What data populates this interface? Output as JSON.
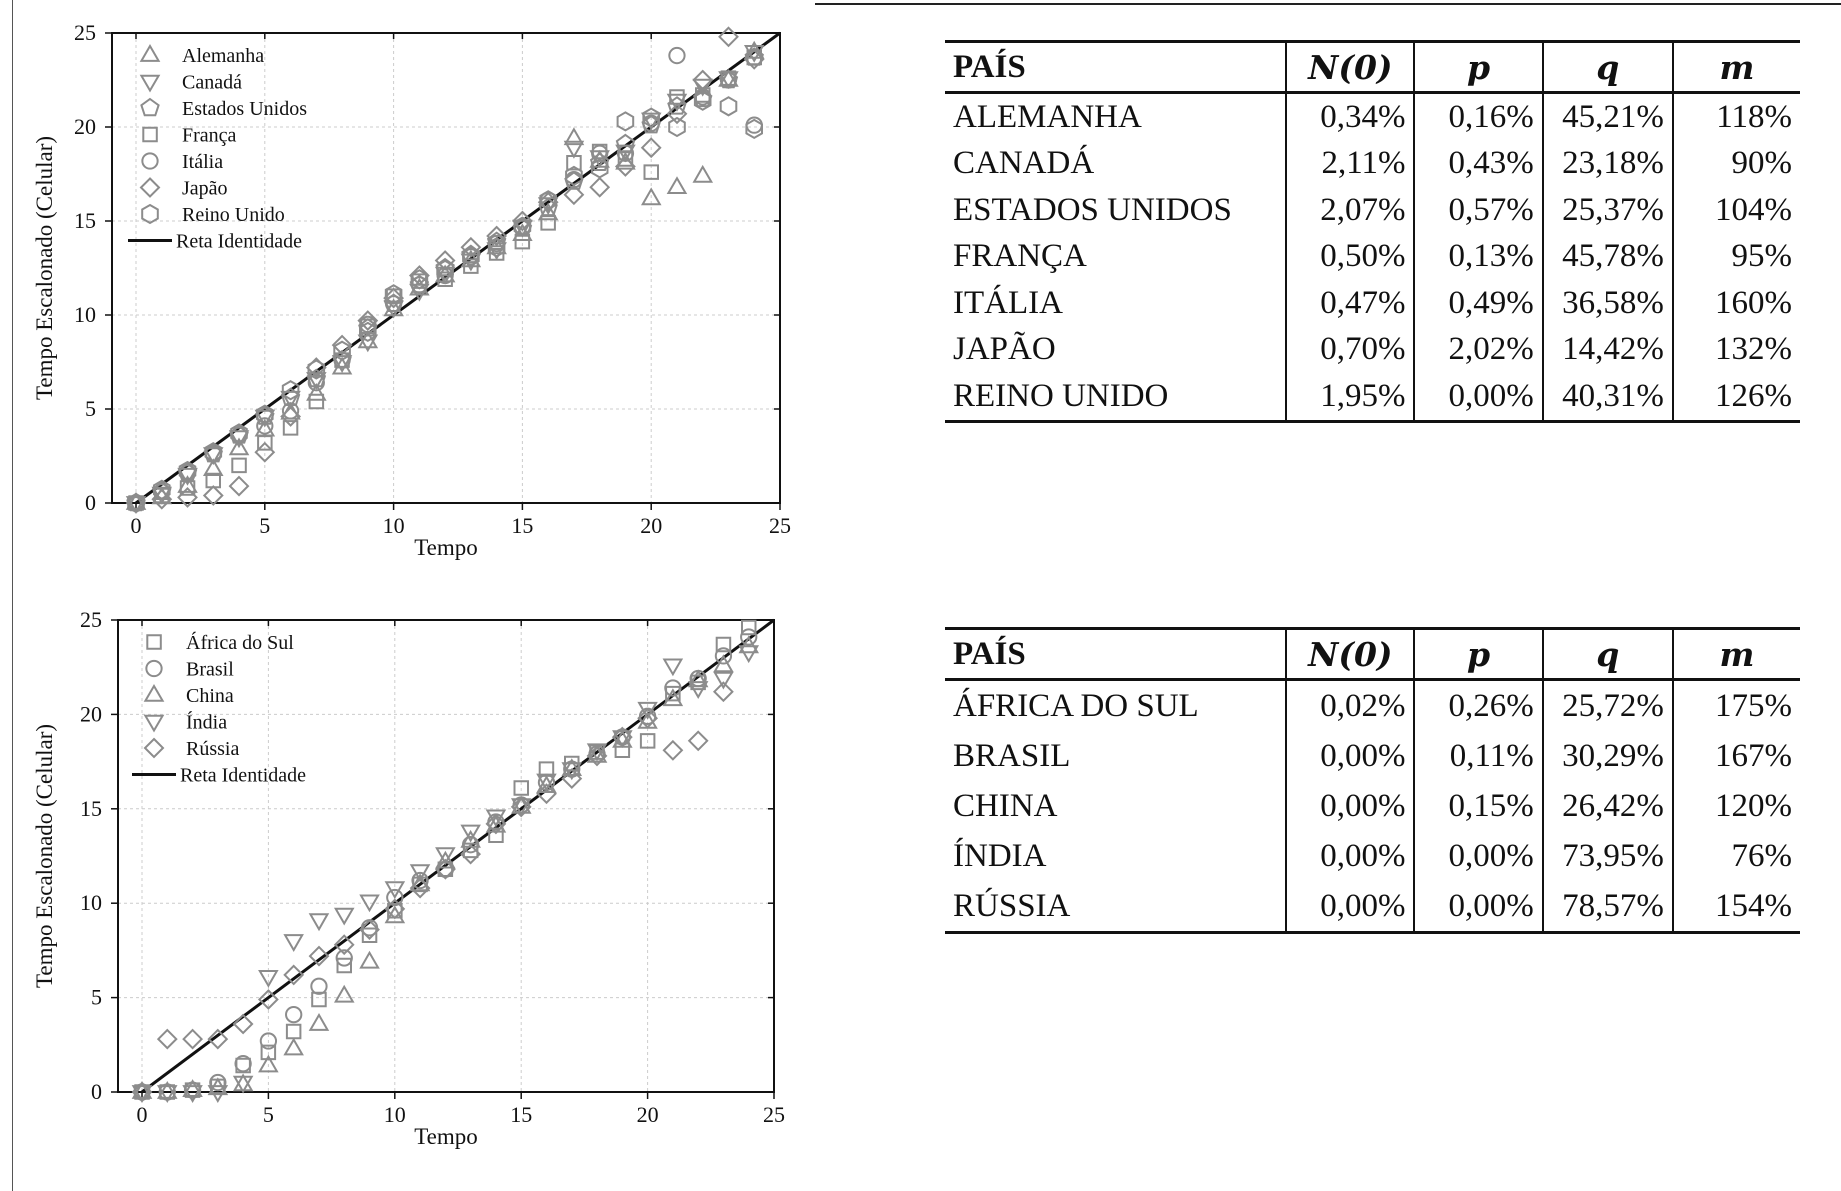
{
  "colors": {
    "marker": "#8c8c8c",
    "identity_line": "#111111",
    "grid": "#cccccc"
  },
  "chart_data": [
    {
      "type": "scatter",
      "ylabel": "Tempo Escalonado (Celular)",
      "xlabel": "Tempo",
      "xlim": [
        0,
        25
      ],
      "ylim": [
        0,
        25
      ],
      "xticks": [
        0,
        5,
        10,
        15,
        20,
        25
      ],
      "yticks": [
        0,
        5,
        10,
        15,
        20,
        25
      ],
      "grid": true,
      "legend_position": "top-left",
      "series": [
        {
          "name": "Alemanha",
          "marker": "triangle-up",
          "x": [
            0,
            1,
            2,
            3,
            4,
            5,
            6,
            7,
            8,
            9,
            10,
            11,
            12,
            13,
            14,
            15,
            16,
            17,
            18,
            19,
            20,
            21,
            22,
            23,
            24
          ],
          "y": [
            0,
            0.3,
            0.9,
            1.8,
            2.9,
            3.9,
            4.8,
            5.8,
            7.2,
            8.6,
            10.3,
            11.4,
            12.1,
            12.9,
            13.6,
            14.3,
            15.4,
            19.4,
            18.2,
            18.1,
            16.2,
            16.8,
            17.4,
            22.5,
            24.0
          ]
        },
        {
          "name": "Canadá",
          "marker": "triangle-down",
          "x": [
            0,
            1,
            2,
            3,
            4,
            5,
            6,
            7,
            8,
            9,
            10,
            11,
            12,
            13,
            14,
            15,
            16,
            17,
            18,
            19,
            20,
            21,
            22,
            23,
            24
          ],
          "y": [
            0,
            0.5,
            1.5,
            2.6,
            3.5,
            4.6,
            5.6,
            6.6,
            7.5,
            8.6,
            10.4,
            11.3,
            12.2,
            12.9,
            13.5,
            14.7,
            15.9,
            18.9,
            18.4,
            18.7,
            20.4,
            21.4,
            22.2,
            22.6,
            24.0
          ]
        },
        {
          "name": "Estados Unidos",
          "marker": "pentagon",
          "x": [
            0,
            1,
            2,
            3,
            4,
            5,
            6,
            7,
            8,
            9,
            10,
            11,
            12,
            13,
            14,
            15,
            16,
            17,
            18,
            19,
            20,
            21,
            22,
            23,
            24
          ],
          "y": [
            0,
            0.6,
            1.6,
            2.6,
            3.6,
            4.6,
            5.6,
            6.6,
            7.6,
            9.3,
            10.6,
            11.6,
            12.5,
            13.2,
            13.9,
            14.6,
            15.7,
            17.1,
            18.1,
            19.1,
            20.1,
            21.1,
            21.5,
            22.5,
            23.7
          ]
        },
        {
          "name": "França",
          "marker": "square",
          "x": [
            0,
            1,
            2,
            3,
            4,
            5,
            6,
            7,
            8,
            9,
            10,
            11,
            12,
            13,
            14,
            15,
            16,
            17,
            18,
            19,
            20,
            21,
            22,
            23,
            24
          ],
          "y": [
            0,
            0.4,
            0.8,
            1.2,
            2.0,
            3.2,
            4.0,
            5.4,
            7.6,
            9.4,
            11.0,
            11.8,
            11.9,
            12.6,
            13.3,
            13.9,
            14.9,
            18.1,
            18.7,
            18.3,
            17.6,
            21.6,
            21.7,
            22.6,
            23.7
          ]
        },
        {
          "name": "Itália",
          "marker": "circle",
          "x": [
            0,
            1,
            2,
            3,
            4,
            5,
            6,
            7,
            8,
            9,
            10,
            11,
            12,
            13,
            14,
            15,
            16,
            17,
            18,
            19,
            20,
            21,
            22,
            23,
            24
          ],
          "y": [
            0,
            0.6,
            1.6,
            2.6,
            3.6,
            4.1,
            4.9,
            6.4,
            7.6,
            9.5,
            10.6,
            11.6,
            12.1,
            13.1,
            13.8,
            14.7,
            16.1,
            17.2,
            18.6,
            18.6,
            20.2,
            23.8,
            21.6,
            22.5,
            20.1
          ]
        },
        {
          "name": "Japão",
          "marker": "diamond",
          "x": [
            0,
            1,
            2,
            3,
            4,
            5,
            6,
            7,
            8,
            9,
            10,
            11,
            12,
            13,
            14,
            15,
            16,
            17,
            18,
            19,
            20,
            21,
            22,
            23,
            24
          ],
          "y": [
            0,
            0.2,
            0.3,
            0.4,
            0.9,
            2.7,
            4.6,
            7.2,
            8.4,
            9.7,
            10.9,
            12.1,
            12.9,
            13.6,
            14.2,
            15.0,
            16.0,
            16.4,
            16.8,
            17.9,
            18.9,
            20.7,
            22.5,
            24.8,
            23.6
          ]
        },
        {
          "name": "Reino Unido",
          "marker": "hexagon",
          "x": [
            0,
            1,
            2,
            3,
            4,
            5,
            6,
            7,
            8,
            9,
            10,
            11,
            12,
            13,
            14,
            15,
            16,
            17,
            18,
            19,
            20,
            21,
            22,
            23,
            24
          ],
          "y": [
            0,
            0.7,
            1.7,
            2.7,
            3.7,
            4.7,
            6.0,
            7.1,
            8.1,
            9.1,
            11.1,
            11.9,
            12.4,
            13.1,
            13.6,
            14.7,
            16.1,
            17.4,
            17.8,
            20.3,
            20.5,
            20.0,
            21.4,
            21.1,
            19.9
          ]
        },
        {
          "name": "Reta Identidade",
          "type": "line",
          "x": [
            0,
            25
          ],
          "y": [
            0,
            25
          ]
        }
      ]
    },
    {
      "type": "scatter",
      "ylabel": "Tempo Escalonado (Celular)",
      "xlabel": "Tempo",
      "xlim": [
        0,
        25
      ],
      "ylim": [
        0,
        25
      ],
      "xticks": [
        0,
        5,
        10,
        15,
        20,
        25
      ],
      "yticks": [
        0,
        5,
        10,
        15,
        20,
        25
      ],
      "grid": true,
      "legend_position": "top-left",
      "series": [
        {
          "name": "África do Sul",
          "marker": "square",
          "x": [
            0,
            1,
            2,
            3,
            4,
            5,
            6,
            7,
            8,
            9,
            10,
            11,
            12,
            13,
            14,
            15,
            16,
            17,
            18,
            19,
            20,
            21,
            22,
            23,
            24
          ],
          "y": [
            0,
            0,
            0.1,
            0.3,
            1.4,
            2.1,
            3.2,
            4.9,
            6.7,
            8.3,
            9.6,
            11.0,
            11.8,
            12.8,
            13.6,
            16.1,
            17.1,
            17.4,
            18.0,
            18.1,
            18.6,
            21.1,
            21.7,
            23.7,
            24.6
          ]
        },
        {
          "name": "Brasil",
          "marker": "circle",
          "x": [
            0,
            1,
            2,
            3,
            4,
            5,
            6,
            7,
            8,
            9,
            10,
            11,
            12,
            13,
            14,
            15,
            16,
            17,
            18,
            19,
            20,
            21,
            22,
            23,
            24
          ],
          "y": [
            0,
            0,
            0.1,
            0.5,
            1.5,
            2.7,
            4.1,
            5.6,
            7.1,
            8.7,
            10.3,
            11.2,
            11.8,
            13.1,
            14.3,
            15.2,
            16.4,
            17.1,
            17.9,
            18.8,
            19.9,
            21.4,
            21.9,
            23.1,
            24.1
          ]
        },
        {
          "name": "China",
          "marker": "triangle-up",
          "x": [
            0,
            1,
            2,
            3,
            4,
            5,
            6,
            7,
            8,
            9,
            10,
            11,
            12,
            13,
            14,
            15,
            16,
            17,
            18,
            19,
            20,
            21,
            22,
            23,
            24
          ],
          "y": [
            0,
            0,
            0.1,
            0.2,
            0.4,
            1.4,
            2.3,
            3.6,
            5.1,
            6.9,
            9.3,
            11.0,
            12.2,
            13.3,
            14.1,
            15.1,
            16.2,
            17.1,
            17.8,
            18.6,
            19.6,
            20.8,
            21.8,
            22.6,
            23.6
          ]
        },
        {
          "name": "Índia",
          "marker": "triangle-down",
          "x": [
            0,
            1,
            2,
            3,
            4,
            5,
            6,
            7,
            8,
            9,
            10,
            11,
            12,
            13,
            14,
            15,
            16,
            17,
            18,
            19,
            20,
            21,
            22,
            23,
            24
          ],
          "y": [
            0,
            0,
            0,
            0,
            0.5,
            6.1,
            8.0,
            9.1,
            9.4,
            10.1,
            10.8,
            11.7,
            12.6,
            13.8,
            14.6,
            15.2,
            16.5,
            17.1,
            18.1,
            18.8,
            20.3,
            22.6,
            21.4,
            21.9,
            23.3
          ]
        },
        {
          "name": "Rússia",
          "marker": "diamond",
          "x": [
            0,
            1,
            2,
            3,
            4,
            5,
            6,
            7,
            8,
            9,
            10,
            11,
            12,
            13,
            14,
            15,
            16,
            17,
            18,
            19,
            20,
            21,
            22,
            23,
            24
          ],
          "y": [
            0,
            2.8,
            2.8,
            2.8,
            3.6,
            4.9,
            6.2,
            7.2,
            7.8,
            8.6,
            9.7,
            10.8,
            11.8,
            12.6,
            14.2,
            15.1,
            15.8,
            16.6,
            17.8,
            18.8,
            19.8,
            18.1,
            18.6,
            21.2,
            null
          ]
        },
        {
          "name": "Reta Identidade",
          "type": "line",
          "x": [
            0,
            25
          ],
          "y": [
            0,
            25
          ]
        }
      ]
    }
  ],
  "table1": {
    "headers": [
      "PAÍS",
      "N(0)",
      "p",
      "q",
      "m"
    ],
    "rows": [
      [
        "ALEMANHA",
        "0,34%",
        "0,16%",
        "45,21%",
        "118%"
      ],
      [
        "CANADÁ",
        "2,11%",
        "0,43%",
        "23,18%",
        "90%"
      ],
      [
        "ESTADOS UNIDOS",
        "2,07%",
        "0,57%",
        "25,37%",
        "104%"
      ],
      [
        "FRANÇA",
        "0,50%",
        "0,13%",
        "45,78%",
        "95%"
      ],
      [
        "ITÁLIA",
        "0,47%",
        "0,49%",
        "36,58%",
        "160%"
      ],
      [
        "JAPÃO",
        "0,70%",
        "2,02%",
        "14,42%",
        "132%"
      ],
      [
        "REINO UNIDO",
        "1,95%",
        "0,00%",
        "40,31%",
        "126%"
      ]
    ]
  },
  "table2": {
    "headers": [
      "PAÍS",
      "N(0)",
      "p",
      "q",
      "m"
    ],
    "rows": [
      [
        "ÁFRICA DO SUL",
        "0,02%",
        "0,26%",
        "25,72%",
        "175%"
      ],
      [
        "BRASIL",
        "0,00%",
        "0,11%",
        "30,29%",
        "167%"
      ],
      [
        "CHINA",
        "0,00%",
        "0,15%",
        "26,42%",
        "120%"
      ],
      [
        "ÍNDIA",
        "0,00%",
        "0,00%",
        "73,95%",
        "76%"
      ],
      [
        "RÚSSIA",
        "0,00%",
        "0,00%",
        "78,57%",
        "154%"
      ]
    ]
  }
}
